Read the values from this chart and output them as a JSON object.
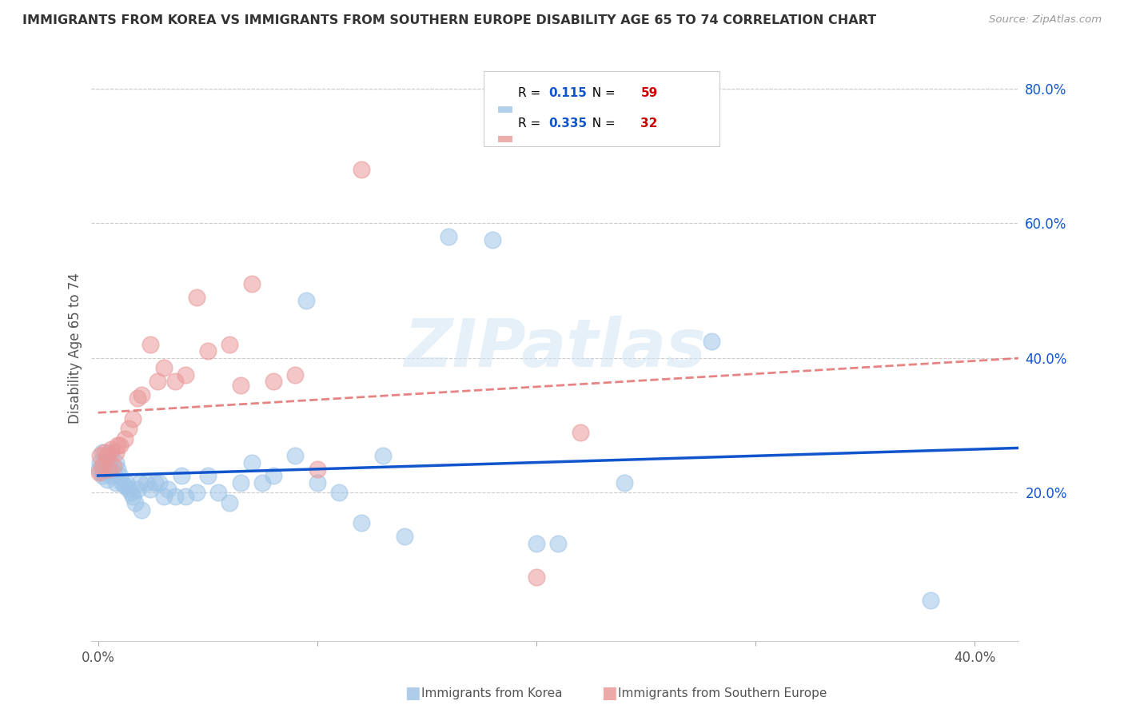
{
  "title": "IMMIGRANTS FROM KOREA VS IMMIGRANTS FROM SOUTHERN EUROPE DISABILITY AGE 65 TO 74 CORRELATION CHART",
  "source": "Source: ZipAtlas.com",
  "ylabel": "Disability Age 65 to 74",
  "watermark": "ZIPatlas",
  "xlim": [
    -0.003,
    0.42
  ],
  "ylim": [
    -0.02,
    0.85
  ],
  "x_ticks": [
    0.0,
    0.1,
    0.2,
    0.3,
    0.4
  ],
  "x_tick_labels": [
    "0.0%",
    "",
    "",
    "",
    "40.0%"
  ],
  "y_ticks_right": [
    0.2,
    0.4,
    0.6,
    0.8
  ],
  "y_tick_labels_right": [
    "20.0%",
    "40.0%",
    "60.0%",
    "80.0%"
  ],
  "korea_R": "0.115",
  "korea_N": "59",
  "south_europe_R": "0.335",
  "south_europe_N": "32",
  "korea_color": "#9fc5e8",
  "south_europe_color": "#ea9999",
  "korea_line_color": "#1155cc",
  "south_europe_line_color": "#e06666",
  "legend_blue_color": "#1155cc",
  "legend_red_color": "#cc0000",
  "legend_text_color": "#000000",
  "grid_color": "#cccccc",
  "background_color": "#ffffff",
  "korea_scatter_x": [
    0.0005,
    0.001,
    0.0015,
    0.002,
    0.002,
    0.003,
    0.003,
    0.004,
    0.004,
    0.005,
    0.005,
    0.006,
    0.006,
    0.007,
    0.008,
    0.008,
    0.009,
    0.01,
    0.011,
    0.012,
    0.013,
    0.014,
    0.015,
    0.016,
    0.017,
    0.018,
    0.019,
    0.02,
    0.022,
    0.024,
    0.026,
    0.028,
    0.03,
    0.032,
    0.035,
    0.038,
    0.04,
    0.045,
    0.05,
    0.055,
    0.06,
    0.065,
    0.07,
    0.075,
    0.08,
    0.09,
    0.095,
    0.1,
    0.11,
    0.12,
    0.13,
    0.14,
    0.16,
    0.18,
    0.2,
    0.21,
    0.24,
    0.28,
    0.38
  ],
  "korea_scatter_y": [
    0.235,
    0.245,
    0.23,
    0.26,
    0.225,
    0.24,
    0.23,
    0.255,
    0.22,
    0.245,
    0.235,
    0.26,
    0.225,
    0.23,
    0.245,
    0.215,
    0.235,
    0.225,
    0.215,
    0.21,
    0.215,
    0.205,
    0.2,
    0.195,
    0.185,
    0.205,
    0.215,
    0.175,
    0.215,
    0.205,
    0.215,
    0.215,
    0.195,
    0.205,
    0.195,
    0.225,
    0.195,
    0.2,
    0.225,
    0.2,
    0.185,
    0.215,
    0.245,
    0.215,
    0.225,
    0.255,
    0.485,
    0.215,
    0.2,
    0.155,
    0.255,
    0.135,
    0.58,
    0.575,
    0.125,
    0.125,
    0.215,
    0.425,
    0.04
  ],
  "south_europe_scatter_x": [
    0.0005,
    0.001,
    0.002,
    0.003,
    0.004,
    0.005,
    0.006,
    0.007,
    0.008,
    0.009,
    0.01,
    0.012,
    0.014,
    0.016,
    0.018,
    0.02,
    0.024,
    0.027,
    0.03,
    0.035,
    0.04,
    0.045,
    0.05,
    0.06,
    0.065,
    0.07,
    0.08,
    0.09,
    0.1,
    0.12,
    0.2,
    0.22
  ],
  "south_europe_scatter_y": [
    0.23,
    0.255,
    0.24,
    0.26,
    0.255,
    0.235,
    0.265,
    0.24,
    0.26,
    0.27,
    0.27,
    0.28,
    0.295,
    0.31,
    0.34,
    0.345,
    0.42,
    0.365,
    0.385,
    0.365,
    0.375,
    0.49,
    0.41,
    0.42,
    0.36,
    0.51,
    0.365,
    0.375,
    0.235,
    0.68,
    0.075,
    0.29
  ]
}
